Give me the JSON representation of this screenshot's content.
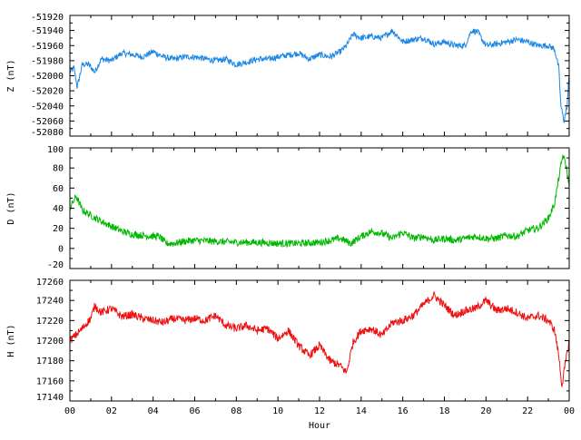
{
  "chart_data": {
    "type": "line",
    "xlabel": "Hour",
    "x_ticks": [
      "00",
      "02",
      "04",
      "06",
      "08",
      "10",
      "12",
      "14",
      "16",
      "18",
      "20",
      "22",
      "00"
    ],
    "xlim": [
      0,
      24
    ],
    "panels": [
      {
        "id": "z",
        "ylabel": "Z (nT)",
        "ylim": [
          -52080,
          -51920
        ],
        "yticks": [
          -52080,
          -52060,
          -52040,
          -52020,
          -52000,
          -51980,
          -51960,
          -51940,
          -51920
        ],
        "color": "#1e88e5",
        "noise": 4,
        "x": [
          0,
          0.2,
          0.35,
          0.6,
          0.9,
          1.2,
          1.5,
          2,
          2.5,
          3,
          3.5,
          4,
          4.5,
          5,
          5.5,
          6,
          7,
          7.5,
          8,
          8.5,
          9,
          9.5,
          10,
          11,
          11.5,
          12,
          12.5,
          13,
          13.3,
          13.6,
          14,
          14.5,
          15,
          15.5,
          16,
          16.5,
          17,
          17.5,
          18,
          18.5,
          19,
          19.3,
          19.6,
          20,
          20.5,
          21,
          21.5,
          22,
          22.5,
          23,
          23.3,
          23.5,
          23.6,
          23.75,
          23.9,
          24
        ],
        "y": [
          -51995,
          -51990,
          -52015,
          -51985,
          -51985,
          -51995,
          -51978,
          -51980,
          -51970,
          -51972,
          -51975,
          -51968,
          -51975,
          -51978,
          -51975,
          -51975,
          -51980,
          -51978,
          -51985,
          -51982,
          -51978,
          -51978,
          -51975,
          -51970,
          -51978,
          -51972,
          -51975,
          -51968,
          -51960,
          -51945,
          -51950,
          -51948,
          -51950,
          -51940,
          -51955,
          -51952,
          -51950,
          -51958,
          -51955,
          -51960,
          -51960,
          -51940,
          -51942,
          -51960,
          -51958,
          -51955,
          -51952,
          -51955,
          -51960,
          -51960,
          -51965,
          -51990,
          -52040,
          -52060,
          -52040,
          -51998
        ]
      },
      {
        "id": "d",
        "ylabel": "D (nT)",
        "ylim": [
          -20,
          100
        ],
        "yticks": [
          -20,
          0,
          20,
          40,
          60,
          80,
          100
        ],
        "color": "#00b800",
        "noise": 3.5,
        "x": [
          0,
          0.3,
          0.6,
          1,
          1.5,
          2,
          2.5,
          3,
          3.5,
          4,
          4.3,
          4.6,
          5,
          5.5,
          6,
          7,
          8,
          9,
          10,
          11,
          12,
          12.5,
          13,
          13.5,
          14,
          14.5,
          15,
          15.5,
          16,
          16.5,
          17,
          17.5,
          18,
          18.5,
          19,
          19.5,
          20,
          20.5,
          21,
          21.5,
          22,
          22.5,
          23,
          23.3,
          23.5,
          23.7,
          23.85,
          24
        ],
        "y": [
          40,
          52,
          38,
          33,
          27,
          22,
          17,
          14,
          13,
          12,
          12,
          5,
          5,
          7,
          8,
          7,
          6,
          6,
          5,
          5,
          6,
          8,
          10,
          5,
          12,
          17,
          15,
          10,
          16,
          10,
          12,
          8,
          10,
          8,
          10,
          12,
          10,
          10,
          13,
          12,
          18,
          20,
          30,
          45,
          70,
          93,
          82,
          62
        ]
      },
      {
        "id": "h",
        "ylabel": "H (nT)",
        "ylim": [
          17140,
          17260
        ],
        "yticks": [
          17140,
          17160,
          17180,
          17200,
          17220,
          17240,
          17260
        ],
        "color": "#ee1111",
        "noise": 4,
        "x": [
          0,
          0.5,
          1,
          1.2,
          1.5,
          2,
          2.5,
          3,
          3.5,
          4,
          4.5,
          5,
          5.5,
          6,
          6.5,
          7,
          7.5,
          8,
          8.5,
          9,
          9.5,
          10,
          10.5,
          11,
          11.5,
          12,
          12.5,
          13,
          13.3,
          13.6,
          14,
          14.5,
          15,
          15.5,
          16,
          16.5,
          17,
          17.5,
          18,
          18.5,
          19,
          19.5,
          20,
          20.5,
          21,
          21.5,
          22,
          22.5,
          23,
          23.3,
          23.5,
          23.65,
          23.8,
          24
        ],
        "y": [
          17200,
          17210,
          17222,
          17235,
          17228,
          17232,
          17224,
          17226,
          17222,
          17220,
          17218,
          17222,
          17220,
          17222,
          17220,
          17225,
          17215,
          17212,
          17215,
          17210,
          17212,
          17202,
          17210,
          17195,
          17185,
          17195,
          17180,
          17175,
          17168,
          17198,
          17210,
          17212,
          17205,
          17218,
          17220,
          17225,
          17236,
          17245,
          17235,
          17225,
          17230,
          17232,
          17240,
          17230,
          17232,
          17228,
          17222,
          17225,
          17220,
          17210,
          17185,
          17155,
          17175,
          17200
        ]
      }
    ]
  }
}
